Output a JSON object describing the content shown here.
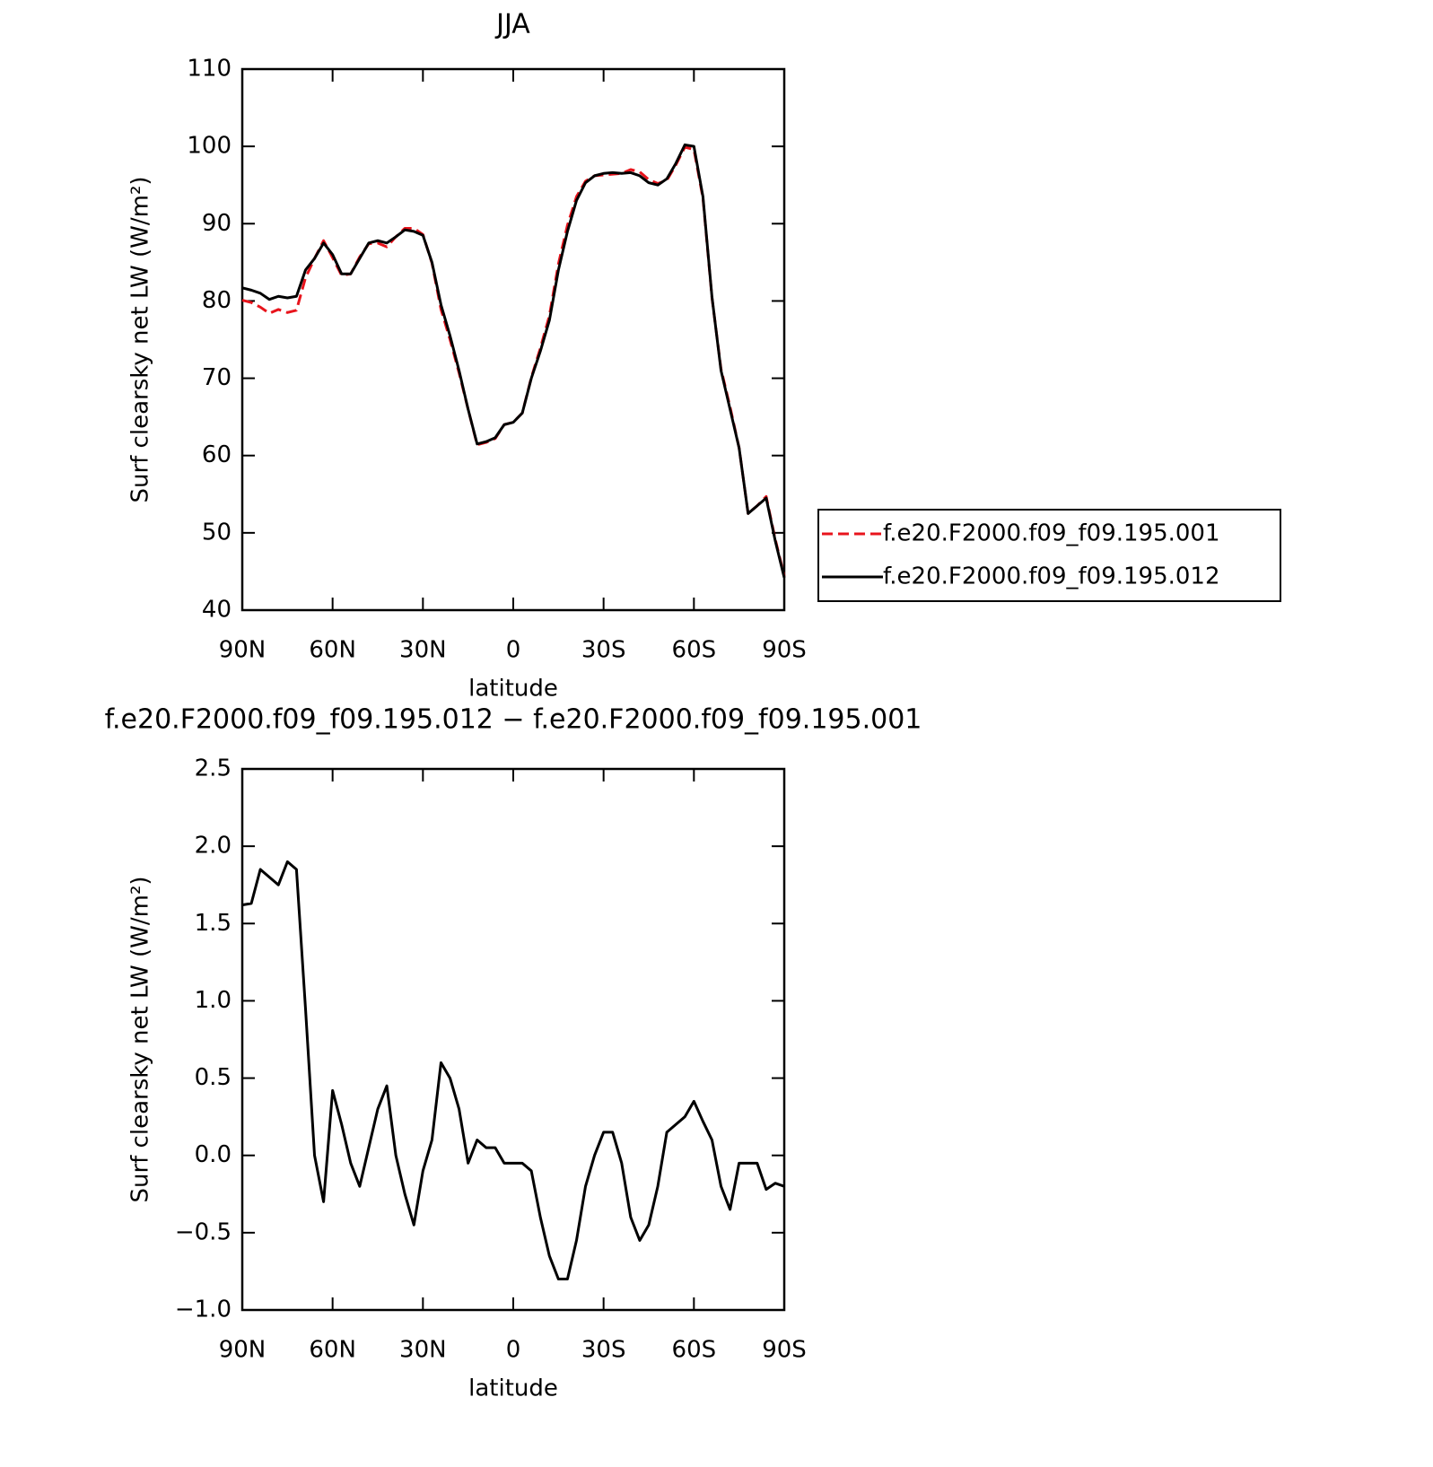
{
  "chart_data": [
    {
      "type": "line",
      "title": "JJA",
      "x_label": "latitude",
      "y_label": "Surf clearsky net LW (W/m²)",
      "x": [
        90,
        87,
        84,
        81,
        78,
        75,
        72,
        69,
        66,
        63,
        60,
        57,
        54,
        51,
        48,
        45,
        42,
        39,
        36,
        33,
        30,
        27,
        24,
        21,
        18,
        15,
        12,
        9,
        6,
        3,
        0,
        -3,
        -6,
        -9,
        -12,
        -15,
        -18,
        -21,
        -24,
        -27,
        -30,
        -33,
        -36,
        -39,
        -42,
        -45,
        -48,
        -51,
        -54,
        -57,
        -60,
        -63,
        -66,
        -69,
        -72,
        -75,
        -78,
        -81,
        -84,
        -87,
        -90
      ],
      "xlim": [
        90,
        -90
      ],
      "xticks": [
        {
          "value": 90,
          "label": "90N"
        },
        {
          "value": 60,
          "label": "60N"
        },
        {
          "value": 30,
          "label": "30N"
        },
        0,
        {
          "value": -30,
          "label": "30S"
        },
        {
          "value": -60,
          "label": "60S"
        },
        {
          "value": -90,
          "label": "90S"
        }
      ],
      "ylim": [
        40,
        110
      ],
      "yticks": [
        40,
        50,
        60,
        70,
        80,
        90,
        100,
        110
      ],
      "legend": "right",
      "series": [
        {
          "name": "f.e20.F2000.f09_f09.195.001",
          "color": "#e8141c",
          "line_style": "dashed",
          "values": [
            80.1,
            79.8,
            79.2,
            78.4,
            78.9,
            78.5,
            78.8,
            83.0,
            85.5,
            87.8,
            85.6,
            83.3,
            83.5,
            85.7,
            87.4,
            87.5,
            87.0,
            88.3,
            89.4,
            89.4,
            88.6,
            84.9,
            78.9,
            75.0,
            70.7,
            66.0,
            61.4,
            61.7,
            62.2,
            64.0,
            64.3,
            65.5,
            70.1,
            73.9,
            78.1,
            84.8,
            89.8,
            93.5,
            95.5,
            96.2,
            96.3,
            96.4,
            96.5,
            97.0,
            96.7,
            95.7,
            95.2,
            95.6,
            97.6,
            99.9,
            99.6,
            93.3,
            80.4,
            71.2,
            66.3,
            61.0,
            52.5,
            53.5,
            54.7,
            49.2,
            44.4
          ]
        },
        {
          "name": "f.e20.F2000.f09_f09.195.012",
          "color": "#000000",
          "line_style": "solid",
          "values": [
            81.7,
            81.4,
            81.0,
            80.2,
            80.6,
            80.4,
            80.6,
            84.0,
            85.5,
            87.5,
            86.0,
            83.5,
            83.5,
            85.5,
            87.5,
            87.8,
            87.5,
            88.3,
            89.2,
            89.0,
            88.5,
            85.0,
            79.5,
            75.5,
            71.0,
            66.0,
            61.5,
            61.8,
            62.3,
            64.0,
            64.3,
            65.5,
            70.0,
            73.5,
            77.5,
            84.0,
            89.0,
            93.0,
            95.3,
            96.2,
            96.5,
            96.6,
            96.5,
            96.6,
            96.2,
            95.3,
            95.0,
            95.8,
            97.8,
            100.2,
            100.0,
            93.5,
            80.5,
            71.0,
            66.0,
            61.0,
            52.5,
            53.5,
            54.5,
            49.0,
            44.2
          ]
        }
      ]
    },
    {
      "type": "line",
      "title": "f.e20.F2000.f09_f09.195.012 − f.e20.F2000.f09_f09.195.001",
      "x_label": "latitude",
      "y_label": "Surf clearsky net LW (W/m²)",
      "x": [
        90,
        87,
        84,
        81,
        78,
        75,
        72,
        69,
        66,
        63,
        60,
        57,
        54,
        51,
        48,
        45,
        42,
        39,
        36,
        33,
        30,
        27,
        24,
        21,
        18,
        15,
        12,
        9,
        6,
        3,
        0,
        -3,
        -6,
        -9,
        -12,
        -15,
        -18,
        -21,
        -24,
        -27,
        -30,
        -33,
        -36,
        -39,
        -42,
        -45,
        -48,
        -51,
        -54,
        -57,
        -60,
        -63,
        -66,
        -69,
        -72,
        -75,
        -78,
        -81,
        -84,
        -87,
        -90
      ],
      "xlim": [
        90,
        -90
      ],
      "xticks": [
        {
          "value": 90,
          "label": "90N"
        },
        {
          "value": 60,
          "label": "60N"
        },
        {
          "value": 30,
          "label": "30N"
        },
        0,
        {
          "value": -30,
          "label": "30S"
        },
        {
          "value": -60,
          "label": "60S"
        },
        {
          "value": -90,
          "label": "90S"
        }
      ],
      "ylim": [
        -1.0,
        2.5
      ],
      "yticks": [
        {
          "value": -1.0,
          "label": "−1.0"
        },
        {
          "value": -0.5,
          "label": "−0.5"
        },
        {
          "value": 0,
          "label": "0.0"
        },
        0.5,
        {
          "value": 1.0,
          "label": "1.0"
        },
        1.5,
        {
          "value": 2.0,
          "label": "2.0"
        },
        2.5
      ],
      "color": "#000000",
      "line_style": "solid",
      "values": [
        1.62,
        1.63,
        1.85,
        1.8,
        1.75,
        1.9,
        1.85,
        0.95,
        0.0,
        -0.3,
        0.42,
        0.2,
        -0.05,
        -0.2,
        0.05,
        0.3,
        0.45,
        0.0,
        -0.25,
        -0.45,
        -0.1,
        0.1,
        0.6,
        0.5,
        0.3,
        -0.05,
        0.1,
        0.05,
        0.05,
        -0.05,
        -0.05,
        -0.05,
        -0.1,
        -0.4,
        -0.65,
        -0.8,
        -0.8,
        -0.55,
        -0.2,
        0.0,
        0.15,
        0.15,
        -0.05,
        -0.4,
        -0.55,
        -0.45,
        -0.2,
        0.15,
        0.2,
        0.25,
        0.35,
        0.22,
        0.1,
        -0.2,
        -0.35,
        -0.05,
        -0.05,
        -0.05,
        -0.22,
        -0.18,
        -0.2
      ]
    }
  ]
}
